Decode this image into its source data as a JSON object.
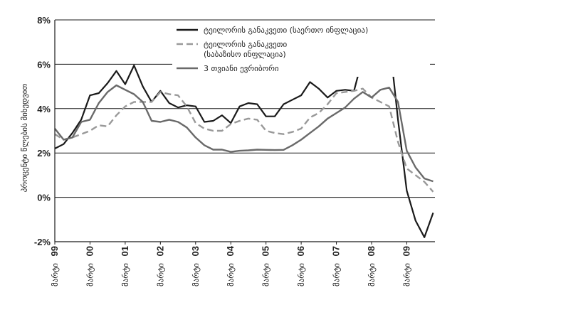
{
  "chart_data": {
    "type": "line",
    "ylabel": "პროცენტი წლების მიხედვით",
    "ylim": [
      -2,
      8
    ],
    "yticks": [
      -2,
      0,
      2,
      4,
      6,
      8
    ],
    "ytick_labels": [
      "-2%",
      "0%",
      "2%",
      "4%",
      "6%",
      "8%"
    ],
    "xlim": [
      1999,
      2009.8
    ],
    "xticks": [
      {
        "year": "99",
        "label": "მარტი"
      },
      {
        "year": "00",
        "label": "მარტი"
      },
      {
        "year": "01",
        "label": "მარტი"
      },
      {
        "year": "02",
        "label": "მარტი"
      },
      {
        "year": "03",
        "label": "მარტი"
      },
      {
        "year": "04",
        "label": "მარტი"
      },
      {
        "year": "05",
        "label": "მარტი"
      },
      {
        "year": "06",
        "label": "მარტი"
      },
      {
        "year": "07",
        "label": "მარტი"
      },
      {
        "year": "08",
        "label": "მარტი"
      },
      {
        "year": "09",
        "label": "მარტი"
      }
    ],
    "grid": "horizontal",
    "legend_position": "top-right",
    "series": [
      {
        "name": "ტეილორის განაკვეთი (საერთო ინფლაცია)",
        "color": "#1a1a1a",
        "style": "solid",
        "x": [
          1999.0,
          1999.25,
          1999.5,
          1999.75,
          2000.0,
          2000.25,
          2000.5,
          2000.75,
          2001.0,
          2001.25,
          2001.5,
          2001.75,
          2002.0,
          2002.25,
          2002.5,
          2002.75,
          2003.0,
          2003.25,
          2003.5,
          2003.75,
          2004.0,
          2004.25,
          2004.5,
          2004.75,
          2005.0,
          2005.25,
          2005.5,
          2005.75,
          2006.0,
          2006.25,
          2006.5,
          2006.75,
          2007.0,
          2007.25,
          2007.5,
          2007.75,
          2008.0,
          2008.25,
          2008.5,
          2008.75,
          2009.0,
          2009.25,
          2009.5,
          2009.75
        ],
        "values": [
          2.2,
          2.4,
          2.9,
          3.5,
          4.6,
          4.7,
          5.15,
          5.7,
          5.1,
          5.95,
          5.0,
          4.3,
          4.8,
          4.25,
          4.05,
          4.15,
          4.1,
          3.4,
          3.45,
          3.7,
          3.35,
          4.1,
          4.25,
          4.2,
          3.65,
          3.65,
          4.2,
          4.4,
          4.6,
          5.2,
          4.9,
          4.5,
          4.8,
          4.85,
          4.8,
          6.3,
          7.1,
          7.2,
          7.2,
          3.5,
          0.3,
          -1.05,
          -1.8,
          -0.7
        ]
      },
      {
        "name": "ტეილორის განაკვეთი (საბაზისო ინფლაცია)",
        "color": "#999999",
        "style": "dashed",
        "x": [
          1999.0,
          1999.25,
          1999.5,
          1999.75,
          2000.0,
          2000.25,
          2000.5,
          2000.75,
          2001.0,
          2001.25,
          2001.5,
          2001.75,
          2002.0,
          2002.25,
          2002.5,
          2002.75,
          2003.0,
          2003.25,
          2003.5,
          2003.75,
          2004.0,
          2004.25,
          2004.5,
          2004.75,
          2005.0,
          2005.25,
          2005.5,
          2005.75,
          2006.0,
          2006.25,
          2006.5,
          2006.75,
          2007.0,
          2007.25,
          2007.5,
          2007.75,
          2008.0,
          2008.25,
          2008.5,
          2008.75,
          2009.0,
          2009.25,
          2009.5,
          2009.75
        ],
        "values": [
          2.85,
          2.6,
          2.7,
          2.85,
          3.0,
          3.25,
          3.2,
          3.7,
          4.1,
          4.3,
          4.3,
          4.3,
          4.75,
          4.65,
          4.6,
          4.1,
          3.35,
          3.1,
          3.0,
          3.0,
          3.3,
          3.45,
          3.55,
          3.5,
          3.0,
          2.9,
          2.85,
          2.95,
          3.1,
          3.6,
          3.8,
          4.2,
          4.7,
          4.75,
          4.8,
          4.9,
          4.5,
          4.3,
          4.1,
          2.5,
          1.3,
          1.0,
          0.7,
          0.25
        ]
      },
      {
        "name": "3 თვიანი ევრიბორი",
        "color": "#6a6a6a",
        "style": "solid",
        "x": [
          1999.0,
          1999.25,
          1999.5,
          1999.75,
          2000.0,
          2000.25,
          2000.5,
          2000.75,
          2001.0,
          2001.25,
          2001.5,
          2001.75,
          2002.0,
          2002.25,
          2002.5,
          2002.75,
          2003.0,
          2003.25,
          2003.5,
          2003.75,
          2004.0,
          2004.25,
          2004.5,
          2004.75,
          2005.0,
          2005.25,
          2005.5,
          2005.75,
          2006.0,
          2006.25,
          2006.5,
          2006.75,
          2007.0,
          2007.25,
          2007.5,
          2007.75,
          2008.0,
          2008.25,
          2008.5,
          2008.75,
          2009.0,
          2009.25,
          2009.5,
          2009.75
        ],
        "values": [
          3.1,
          2.6,
          2.7,
          3.4,
          3.5,
          4.25,
          4.75,
          5.05,
          4.85,
          4.65,
          4.3,
          3.45,
          3.4,
          3.5,
          3.4,
          3.15,
          2.7,
          2.35,
          2.15,
          2.15,
          2.05,
          2.1,
          2.12,
          2.15,
          2.14,
          2.13,
          2.14,
          2.35,
          2.6,
          2.9,
          3.2,
          3.55,
          3.8,
          4.05,
          4.45,
          4.75,
          4.5,
          4.85,
          4.95,
          4.3,
          2.1,
          1.35,
          0.85,
          0.72
        ]
      }
    ]
  }
}
